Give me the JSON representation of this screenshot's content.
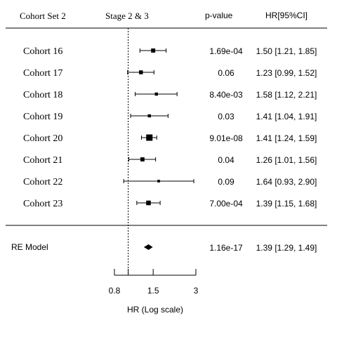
{
  "header": {
    "col1": "Cohort Set 2",
    "col2": "Stage 2 & 3",
    "col3": "p-value",
    "col4": "HR[95%CI]"
  },
  "chart_data": {
    "type": "forest",
    "xlabel": "HR (Log scale)",
    "x_scale": "log",
    "ticks": [
      {
        "value": 0.8,
        "label": "0.8"
      },
      {
        "value": 1.5,
        "label": "1.5"
      },
      {
        "value": 3,
        "label": "3"
      }
    ],
    "xlim": [
      0.8,
      3
    ],
    "reference_line": 1,
    "studies": [
      {
        "label": "Cohort 16",
        "hr": 1.5,
        "lo": 1.21,
        "hi": 1.85,
        "p": "1.69e-04",
        "ci_text": "1.50 [1.21, 1.85]",
        "weight": 0.55
      },
      {
        "label": "Cohort 17",
        "hr": 1.23,
        "lo": 0.99,
        "hi": 1.52,
        "p": "0.06",
        "ci_text": "1.23 [0.99, 1.52]",
        "weight": 0.5
      },
      {
        "label": "Cohort 18",
        "hr": 1.58,
        "lo": 1.12,
        "hi": 2.21,
        "p": "8.40e-03",
        "ci_text": "1.58 [1.12, 2.21]",
        "weight": 0.35
      },
      {
        "label": "Cohort 19",
        "hr": 1.41,
        "lo": 1.04,
        "hi": 1.91,
        "p": "0.03",
        "ci_text": "1.41 [1.04, 1.91]",
        "weight": 0.35
      },
      {
        "label": "Cohort 20",
        "hr": 1.41,
        "lo": 1.24,
        "hi": 1.59,
        "p": "9.01e-08",
        "ci_text": "1.41 [1.24, 1.59]",
        "weight": 1.0
      },
      {
        "label": "Cohort 21",
        "hr": 1.26,
        "lo": 1.01,
        "hi": 1.56,
        "p": "0.04",
        "ci_text": "1.26 [1.01, 1.56]",
        "weight": 0.55
      },
      {
        "label": "Cohort 22",
        "hr": 1.64,
        "lo": 0.93,
        "hi": 2.9,
        "p": "0.09",
        "ci_text": "1.64 [0.93, 2.90]",
        "weight": 0.25
      },
      {
        "label": "Cohort 23",
        "hr": 1.39,
        "lo": 1.15,
        "hi": 1.68,
        "p": "7.00e-04",
        "ci_text": "1.39 [1.15, 1.68]",
        "weight": 0.65
      }
    ],
    "summary": {
      "label": "RE Model",
      "hr": 1.39,
      "lo": 1.29,
      "hi": 1.49,
      "p": "1.16e-17",
      "ci_text": "1.39 [1.29, 1.49]"
    }
  }
}
